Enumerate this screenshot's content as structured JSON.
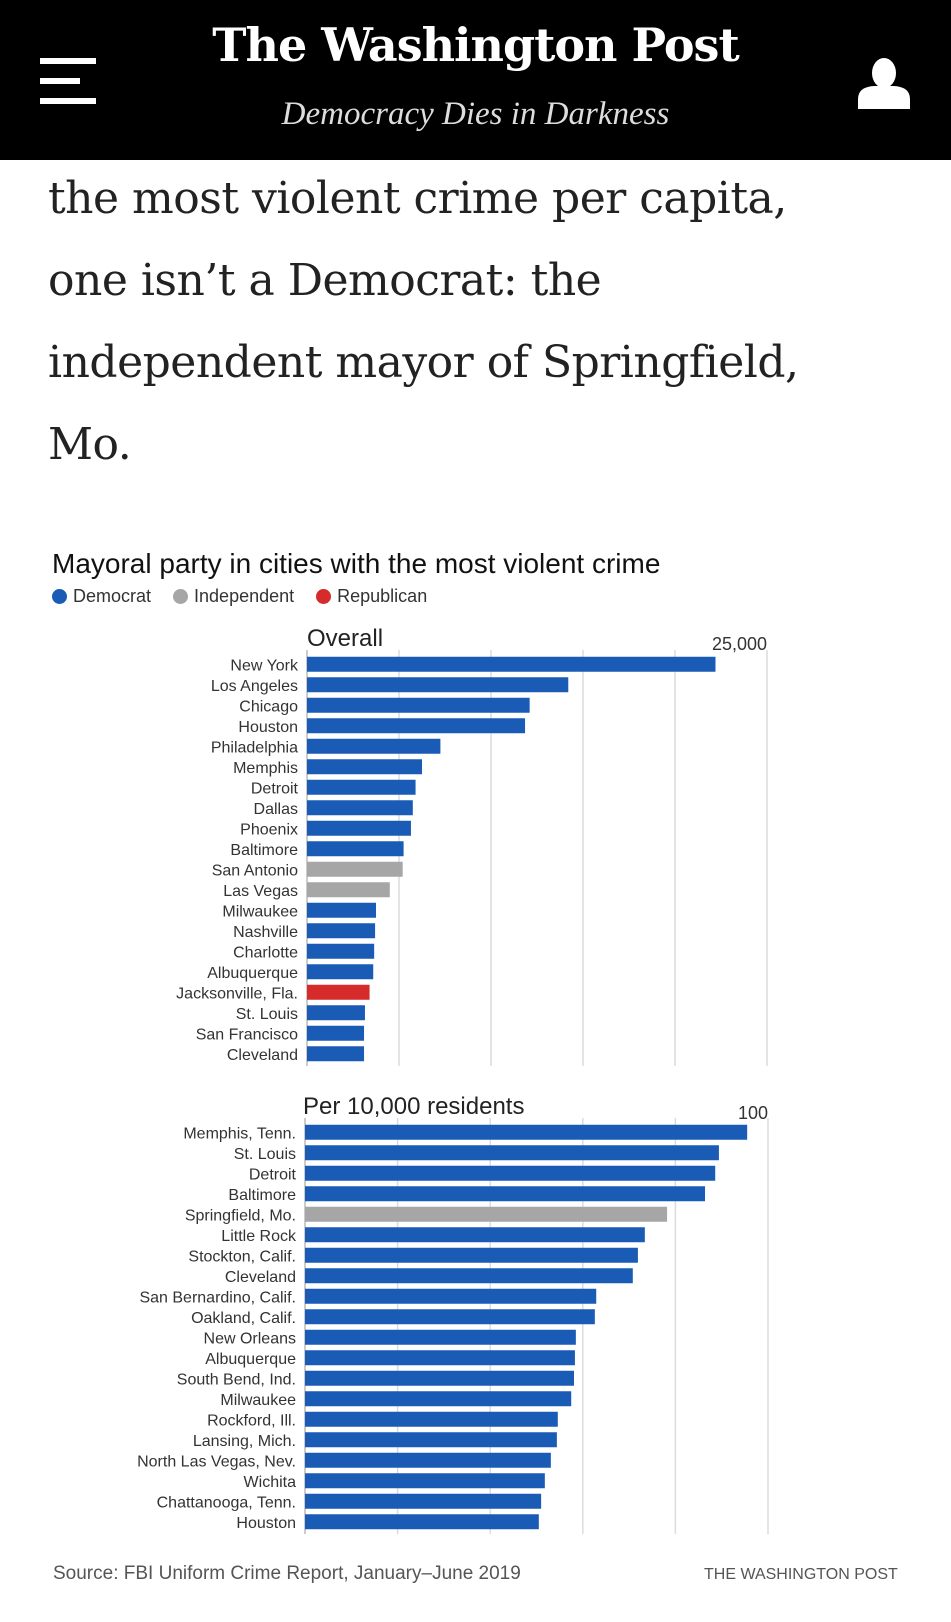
{
  "header": {
    "title": "The Washington Post",
    "tagline": "Democracy Dies in Darkness",
    "menu_icon": "hamburger-menu-icon",
    "account_icon": "user-account-icon"
  },
  "article": {
    "lines": [
      "the most violent crime per capita,",
      "one isn’t a Democrat: the",
      "independent mayor of Springfield,",
      "Mo."
    ]
  },
  "colors": {
    "democrat": "#1a5cb5",
    "independent": "#a6a6a6",
    "republican": "#d52b2b",
    "grid": "#dcdcdc"
  },
  "legend": [
    {
      "label": "Democrat",
      "party": "democrat"
    },
    {
      "label": "Independent",
      "party": "independent"
    },
    {
      "label": "Republican",
      "party": "republican"
    }
  ],
  "footer": {
    "source": "Source: FBI Uniform Crime Report, January–June 2019",
    "credit": "THE WASHINGTON POST"
  },
  "chart_data": [
    {
      "type": "bar",
      "orientation": "horizontal",
      "title": "Mayoral party in cities with the most violent crime",
      "subtitle": "Overall",
      "xmax_label": "25,000",
      "xlim": [
        0,
        25000
      ],
      "grid_step": 5000,
      "grid": true,
      "legend_placement": "top-left",
      "categories": [
        "New York",
        "Los Angeles",
        "Chicago",
        "Houston",
        "Philadelphia",
        "Memphis",
        "Detroit",
        "Dallas",
        "Phoenix",
        "Baltimore",
        "San Antonio",
        "Las Vegas",
        "Milwaukee",
        "Nashville",
        "Charlotte",
        "Albuquerque",
        "Jacksonville, Fla.",
        "St. Louis",
        "San Francisco",
        "Cleveland"
      ],
      "values": [
        22200,
        14200,
        12100,
        11850,
        7250,
        6250,
        5900,
        5750,
        5650,
        5250,
        5200,
        4500,
        3750,
        3700,
        3650,
        3600,
        3400,
        3150,
        3100,
        3100
      ],
      "party": [
        "democrat",
        "democrat",
        "democrat",
        "democrat",
        "democrat",
        "democrat",
        "democrat",
        "democrat",
        "democrat",
        "democrat",
        "independent",
        "independent",
        "democrat",
        "democrat",
        "democrat",
        "democrat",
        "republican",
        "democrat",
        "democrat",
        "democrat"
      ]
    },
    {
      "type": "bar",
      "orientation": "horizontal",
      "subtitle": "Per 10,000 residents",
      "xmax_label": "100",
      "xlim": [
        0,
        100
      ],
      "grid_step": 20,
      "grid": true,
      "categories": [
        "Memphis, Tenn.",
        "St. Louis",
        "Detroit",
        "Baltimore",
        "Springfield, Mo.",
        "Little Rock",
        "Stockton, Calif.",
        "Cleveland",
        "San Bernardino, Calif.",
        "Oakland, Calif.",
        "New Orleans",
        "Albuquerque",
        "South Bend, Ind.",
        "Milwaukee",
        "Rockford, Ill.",
        "Lansing, Mich.",
        "North Las Vegas, Nev.",
        "Wichita",
        "Chattanooga, Tenn.",
        "Houston"
      ],
      "values": [
        95.5,
        89.4,
        88.6,
        86.4,
        78.2,
        73.4,
        71.9,
        70.8,
        62.9,
        62.6,
        58.5,
        58.3,
        58.1,
        57.5,
        54.6,
        54.4,
        53.1,
        51.8,
        51.0,
        50.5
      ],
      "party": [
        "democrat",
        "democrat",
        "democrat",
        "democrat",
        "independent",
        "democrat",
        "democrat",
        "democrat",
        "democrat",
        "democrat",
        "democrat",
        "democrat",
        "democrat",
        "democrat",
        "democrat",
        "democrat",
        "democrat",
        "democrat",
        "democrat",
        "democrat"
      ]
    }
  ]
}
